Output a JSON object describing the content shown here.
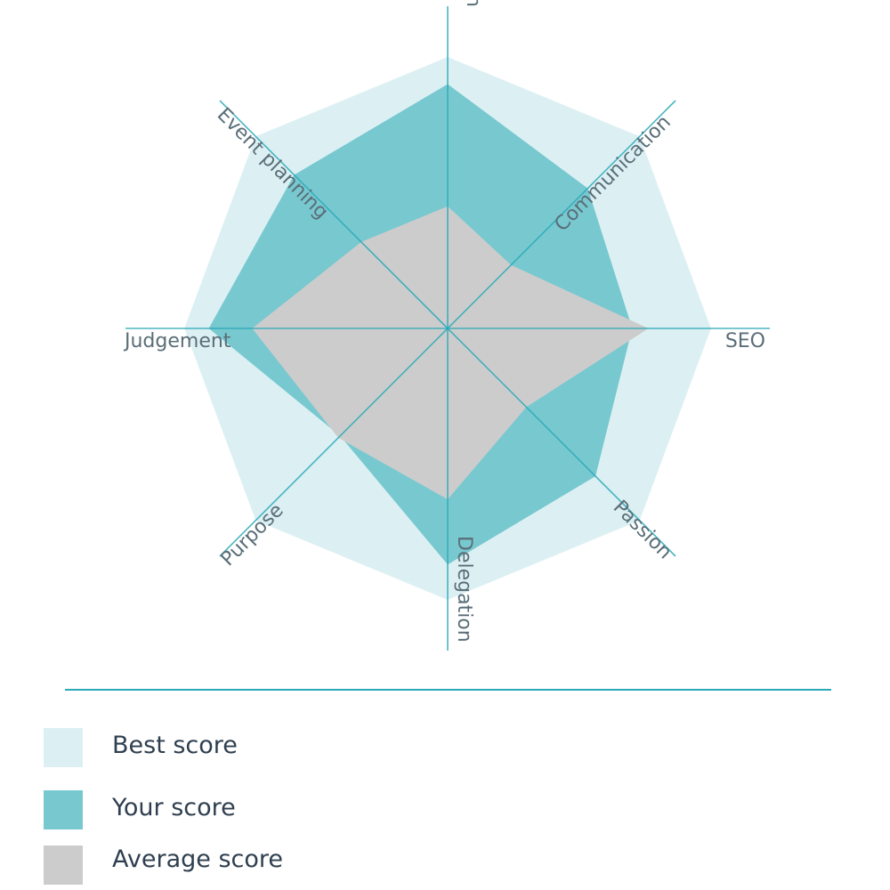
{
  "chart_data": {
    "type": "radar",
    "axes": [
      "Prioritisation",
      "Communication",
      "SEO",
      "Passion",
      "Delegation",
      "Purpose",
      "Judgement",
      "Event planning"
    ],
    "range": [
      0,
      100
    ],
    "grid": false,
    "legend_position": "bottom-left",
    "series": [
      {
        "name": "Best score",
        "color": "#dcf0f3",
        "values": [
          100,
          100,
          97,
          100,
          100,
          100,
          97,
          100
        ]
      },
      {
        "name": "Your score",
        "color": "#78c8d0",
        "values": [
          90,
          73,
          68,
          77,
          87,
          56,
          88,
          80
        ]
      },
      {
        "name": "Average score",
        "color": "#cccccc",
        "values": [
          45,
          33,
          74,
          41,
          63,
          57,
          72,
          45
        ]
      }
    ]
  },
  "colors": {
    "axis": "#2aa9b7",
    "label": "#5a6e78",
    "legend_text": "#2f3f4f"
  }
}
